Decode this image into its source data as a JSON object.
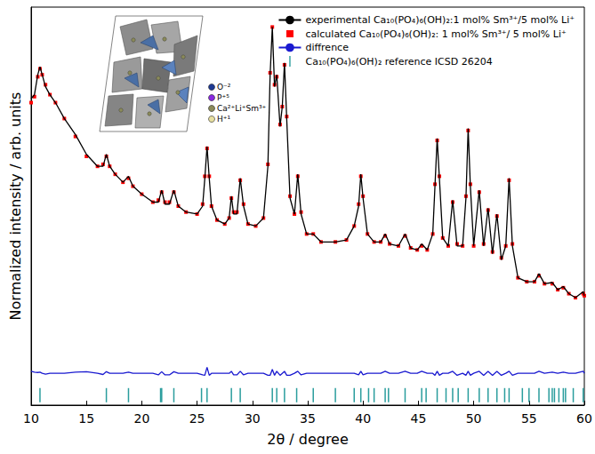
{
  "chart_data": {
    "type": "line",
    "xlabel": "2θ / degree",
    "ylabel": "Normalized intensity / arb. units",
    "xlim": [
      10,
      60
    ],
    "xticks": [
      10,
      15,
      20,
      25,
      30,
      35,
      40,
      45,
      50,
      55,
      60
    ],
    "ylim": [
      0,
      100
    ],
    "tick_labels": "x",
    "grid": false,
    "legend": "upper right",
    "annotations": [
      "O⁻²",
      "P⁺⁵",
      "Ca²⁺Li⁺Sm³⁺",
      "H⁺¹"
    ],
    "x": [
      10,
      10.3,
      10.6,
      10.8,
      11.0,
      11.3,
      11.7,
      12.2,
      13,
      14,
      15,
      16,
      16.5,
      16.8,
      17.1,
      17.6,
      18.3,
      18.8,
      19.2,
      20,
      21,
      21.5,
      21.8,
      22.1,
      22.5,
      22.9,
      23.3,
      24,
      25,
      25.5,
      25.7,
      25.9,
      26.1,
      26.3,
      26.8,
      27.5,
      27.9,
      28.1,
      28.3,
      28.6,
      28.9,
      29.2,
      29.6,
      30.3,
      31.0,
      31.4,
      31.6,
      31.8,
      32.0,
      32.2,
      32.5,
      32.7,
      32.9,
      33.1,
      33.4,
      33.8,
      34.1,
      34.4,
      34.9,
      35.5,
      36.2,
      37.5,
      38.5,
      39.2,
      39.6,
      39.8,
      40.0,
      40.4,
      41.0,
      41.6,
      42.0,
      42.4,
      43.2,
      43.8,
      44.3,
      44.9,
      45.3,
      45.8,
      46.3,
      46.5,
      46.7,
      46.9,
      47.2,
      47.7,
      48.1,
      48.5,
      49.0,
      49.3,
      49.5,
      49.7,
      50.0,
      50.5,
      50.9,
      51.3,
      51.7,
      52.1,
      52.5,
      52.9,
      53.2,
      53.5,
      54.0,
      54.8,
      55.5,
      55.9,
      56.4,
      57.1,
      57.6,
      58.1,
      58.6,
      59.2,
      59.9,
      60
    ],
    "series": [
      {
        "name": "experimental Ca₁₀(PO₄)₆(OH)₂:1 mol% Sm³⁺/5 mol% Li⁺",
        "type": "line",
        "line_style": "solid",
        "color": "#000000",
        "values": [
          77,
          78,
          83,
          85,
          83,
          80,
          78,
          76,
          72,
          68,
          63,
          60,
          60,
          63,
          60,
          58,
          56,
          57.5,
          55,
          53,
          51,
          51,
          54,
          50.5,
          50.5,
          54,
          50,
          48.5,
          48,
          50,
          57,
          65,
          57,
          50,
          46.5,
          45.5,
          47,
          52.5,
          48,
          48,
          57,
          50,
          45.5,
          45,
          47,
          60,
          83,
          95,
          80,
          83,
          70,
          75,
          86,
          72,
          52,
          48,
          58,
          48,
          43,
          43,
          41,
          41,
          41.5,
          45,
          50,
          58,
          52,
          43,
          41,
          41,
          43,
          40.5,
          40,
          43,
          39.5,
          39,
          40.5,
          39,
          43,
          55,
          67,
          57,
          42,
          40,
          51.5,
          40,
          40,
          52,
          69.5,
          55,
          40,
          54,
          40,
          49.5,
          38,
          48,
          36.5,
          40,
          57,
          40,
          32,
          31,
          31,
          33,
          30.5,
          30.8,
          29,
          29.8,
          28,
          27,
          28.5,
          27.5
        ]
      },
      {
        "name": "calculated Ca₁₀(PO₄)₆(OH)₂: 1 mol% Sm³⁺/ 5 mol% Li⁺",
        "type": "scatter",
        "marker": "square",
        "color": "#ff0000",
        "values": [
          76,
          77.5,
          82.5,
          84.5,
          83,
          80.5,
          78,
          76,
          72,
          67.5,
          62.5,
          60,
          60.5,
          62.5,
          60,
          58,
          56,
          57,
          55,
          53,
          51,
          51.5,
          53.5,
          51,
          51,
          53.5,
          50,
          48.5,
          48,
          50.5,
          57.5,
          64.5,
          57.5,
          50,
          46.5,
          45.5,
          47,
          52,
          48.5,
          48.5,
          56.5,
          50.5,
          45.5,
          45,
          47,
          60.5,
          83.5,
          95,
          80.5,
          82.5,
          70.5,
          75,
          85.5,
          72.5,
          52.5,
          48,
          57.5,
          48.5,
          43,
          43,
          41,
          41,
          41.5,
          45,
          50.5,
          57.5,
          52.5,
          43,
          41,
          41,
          42.5,
          40.5,
          40,
          42.5,
          39.5,
          39,
          40,
          39,
          43,
          55.5,
          66.5,
          57.5,
          42,
          40,
          51,
          40.5,
          40,
          52.5,
          69,
          55.5,
          40,
          53.5,
          40.5,
          49,
          38.5,
          47.5,
          37,
          40,
          56.5,
          40.5,
          32,
          31,
          31,
          32.5,
          30.5,
          30.5,
          29,
          29.5,
          28,
          27,
          28,
          27.5
        ]
      },
      {
        "name": "diffrence",
        "type": "line",
        "line_style": "solid",
        "color": "#1a1ad0",
        "values": [
          8.5,
          8.3,
          8.2,
          8.3,
          8,
          7.8,
          8,
          8,
          8,
          8.3,
          8.4,
          8,
          7.7,
          8.4,
          8,
          8,
          8,
          8.3,
          8,
          8,
          8,
          7.6,
          8.4,
          7.6,
          7.6,
          8.4,
          8,
          8,
          8,
          7.6,
          7.5,
          9.5,
          7.5,
          8,
          8,
          8,
          8,
          8.5,
          7.6,
          7.6,
          8.5,
          7.6,
          8,
          8,
          8,
          7.5,
          7.5,
          9,
          7.5,
          8.5,
          7.5,
          8,
          8.5,
          7.5,
          7.5,
          8,
          8.5,
          7.6,
          8,
          8,
          8,
          8,
          8,
          8,
          7.6,
          8.5,
          7.6,
          8,
          8,
          8,
          8.5,
          8,
          8,
          8.5,
          8,
          8,
          8.5,
          8,
          8,
          7.5,
          8.5,
          7.5,
          8,
          8,
          8.5,
          7.5,
          8,
          7.5,
          8.5,
          7.5,
          8,
          8.5,
          7.5,
          8.5,
          7.5,
          8.5,
          7.5,
          8,
          8.5,
          7.5,
          8,
          8,
          8,
          8.5,
          8,
          8.3,
          8,
          8.3,
          8,
          8,
          8.5,
          8
        ]
      },
      {
        "name": "Ca₁₀(PO₄)₆(OH)₂ reference ICSD 26204",
        "type": "scatter",
        "marker": "vline",
        "color": "#2a9d9d",
        "x": [
          10.8,
          16.8,
          18.8,
          21.7,
          21.8,
          22.9,
          25.4,
          25.9,
          28.1,
          28.9,
          31.8,
          32.2,
          32.9,
          34.0,
          35.5,
          37.5,
          39.2,
          39.8,
          40.5,
          41.0,
          42.0,
          42.3,
          43.8,
          45.3,
          45.7,
          46.7,
          47.5,
          48.1,
          48.6,
          49.5,
          50.5,
          51.3,
          52.1,
          52.8,
          53.2,
          54.4,
          55.0,
          55.9,
          56.8,
          57.1,
          57.3,
          57.7,
          58.1,
          58.3,
          59.0,
          59.9
        ],
        "values": [
          2.5,
          2.5,
          2.5,
          2.5,
          2.5,
          2.5,
          2.5,
          2.5,
          2.5,
          2.5,
          2.5,
          2.5,
          2.5,
          2.5,
          2.5,
          2.5,
          2.5,
          2.5,
          2.5,
          2.5,
          2.5,
          2.5,
          2.5,
          2.5,
          2.5,
          2.5,
          2.5,
          2.5,
          2.5,
          2.5,
          2.5,
          2.5,
          2.5,
          2.5,
          2.5,
          2.5,
          2.5,
          2.5,
          2.5,
          2.5,
          2.5,
          2.5,
          2.5,
          2.5,
          2.5,
          2.5
        ]
      }
    ]
  }
}
